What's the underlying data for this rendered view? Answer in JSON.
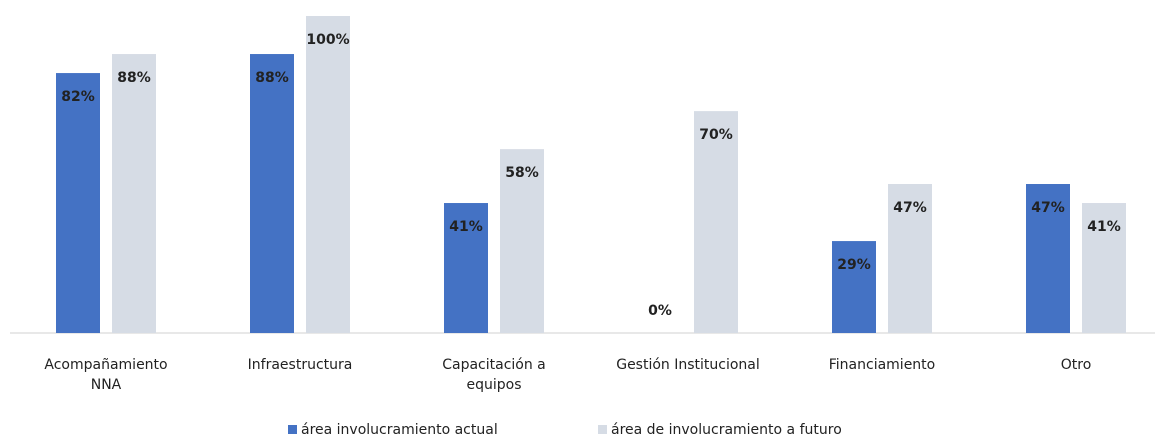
{
  "chart_data": {
    "type": "bar",
    "categories": [
      "Acompañamiento\nNNA",
      "Infraestructura",
      "Capacitación a\nequipos",
      "Gestión Institucional",
      "Financiamiento",
      "Otro"
    ],
    "series": [
      {
        "name": "área involucramiento actual",
        "color": "#4472c4",
        "values": [
          82,
          88,
          41,
          0,
          29,
          47
        ],
        "value_labels": [
          "82%",
          "88%",
          "41%",
          "0%",
          "29%",
          "47%"
        ]
      },
      {
        "name": "área de involucramiento a futuro",
        "color": "#d6dce5",
        "values": [
          88,
          100,
          58,
          70,
          47,
          41
        ],
        "value_labels": [
          "88%",
          "100%",
          "58%",
          "70%",
          "47%",
          "41%"
        ]
      }
    ],
    "legend": "bottom"
  }
}
